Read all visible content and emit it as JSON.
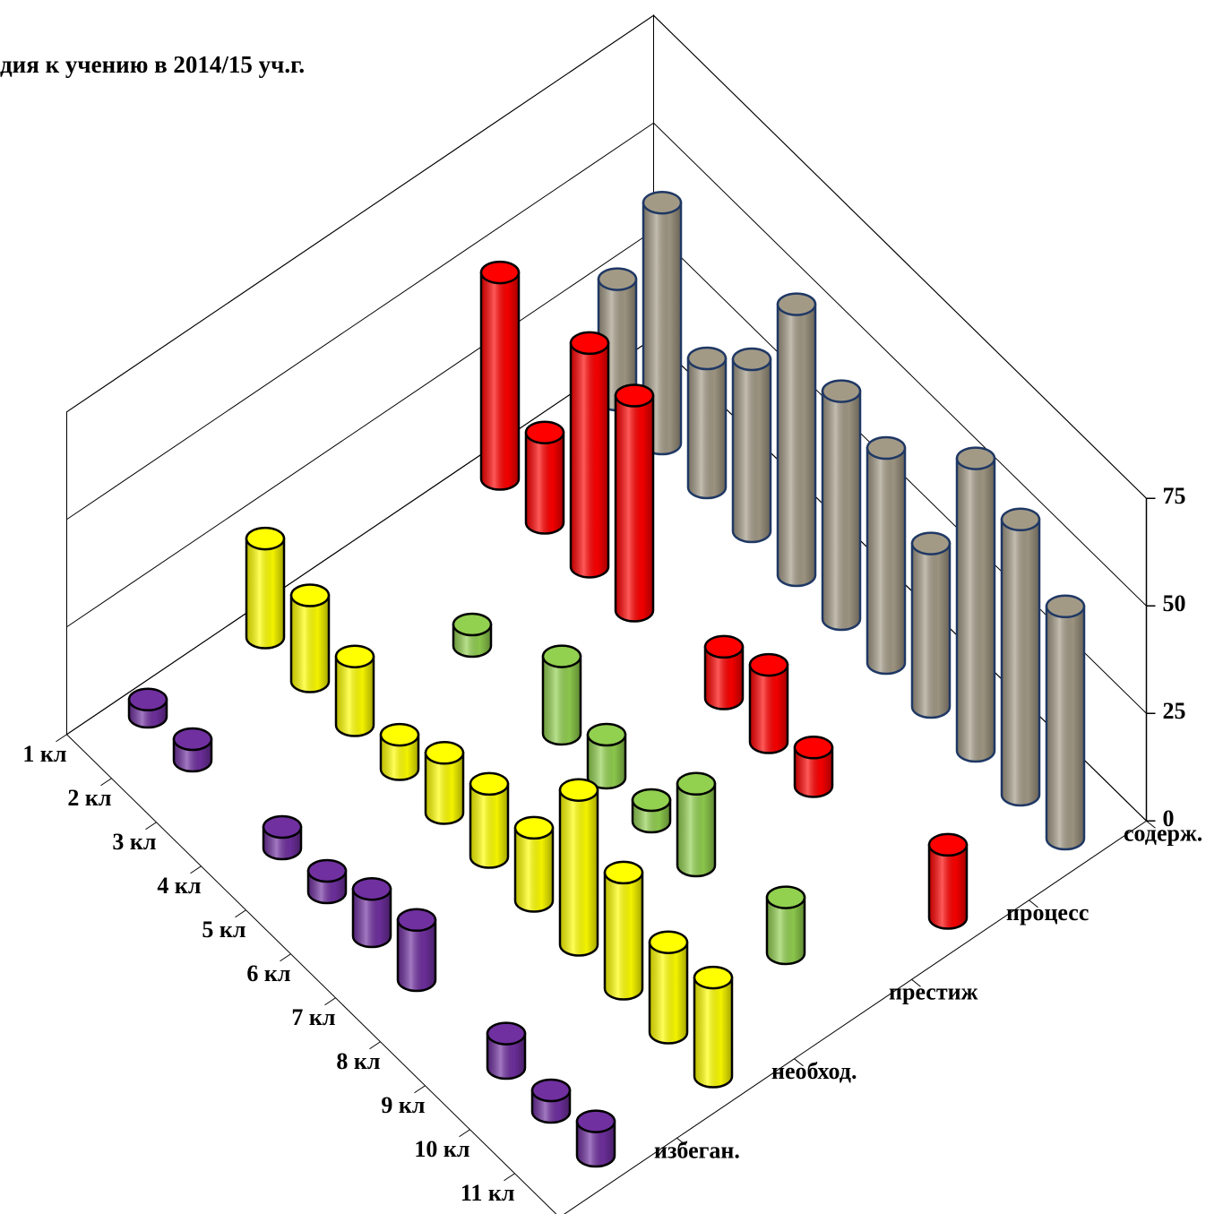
{
  "chart_data": {
    "type": "bar3d",
    "title": "дия к учению в 2014/15 уч.г.",
    "categories": [
      "1 кл",
      "2 кл",
      "3 кл",
      "4 кл",
      "5 кл",
      "6 кл",
      "7 кл",
      "8 кл",
      "9 кл",
      "10 кл",
      "11 кл"
    ],
    "series": [
      {
        "name": "избеган.",
        "color": "#7030a0",
        "edgecolor": "#000000",
        "values": [
          4,
          5,
          null,
          5,
          5,
          11,
          14,
          null,
          8,
          5,
          8
        ]
      },
      {
        "name": "необход.",
        "color": "#ffff00",
        "edgecolor": "#000000",
        "values": [
          23,
          20,
          16,
          8,
          14,
          17,
          17,
          36,
          27,
          21,
          23
        ]
      },
      {
        "name": "престиж",
        "color": "#92d050",
        "edgecolor": "#000000",
        "values": [
          null,
          null,
          5,
          null,
          18,
          10,
          5,
          19,
          null,
          13,
          null
        ]
      },
      {
        "name": "процесс",
        "color": "#ff0000",
        "edgecolor": "#000000",
        "values": [
          48,
          21,
          52,
          50,
          null,
          12,
          18,
          9,
          null,
          null,
          17
        ]
      },
      {
        "name": "содерж.",
        "color": "#a39a86",
        "edgecolor": "#1f3864",
        "values": [
          28,
          56,
          30,
          40,
          63,
          53,
          50,
          38,
          68,
          64,
          54
        ]
      }
    ],
    "ylim": [
      0,
      75
    ],
    "yticks": [
      0,
      25,
      50,
      75
    ],
    "grid": true
  }
}
